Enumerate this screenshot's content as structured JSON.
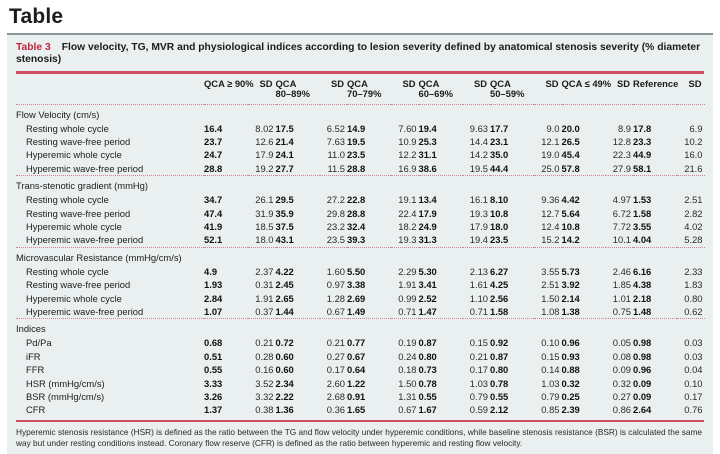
{
  "page": {
    "title": "Table"
  },
  "colors": {
    "card_background": "#e9f0ef",
    "accent_red": "#c2233c",
    "rule_red": "#cf4d5d",
    "dotted_separator_red": "#d4838d"
  },
  "table": {
    "label": "Table 3",
    "caption": "Flow velocity, TG, MVR and physiological indices according to lesion severity defined by anatomical stenosis severity (% diameter stenosis)",
    "columns": [
      "QCA ≥ 90%",
      "SD",
      "QCA\n80–89%",
      "SD",
      "QCA\n70–79%",
      "SD",
      "QCA\n60–69%",
      "SD",
      "QCA\n50–59%",
      "SD",
      "QCA ≤ 49%",
      "SD",
      "Reference",
      "SD"
    ],
    "sections": [
      {
        "header": "Flow Velocity (cm/s)",
        "rows": [
          {
            "label": "Resting whole cycle",
            "values": [
              "16.4",
              "8.02",
              "17.5",
              "6.52",
              "14.9",
              "7.60",
              "19.4",
              "9.63",
              "17.7",
              "9.0",
              "20.0",
              "8.9",
              "17.8",
              "6.9"
            ]
          },
          {
            "label": "Resting wave-free period",
            "values": [
              "23.7",
              "12.6",
              "21.4",
              "7.63",
              "19.5",
              "10.9",
              "25.3",
              "14.4",
              "23.1",
              "12.1",
              "26.5",
              "12.8",
              "23.3",
              "10.2"
            ]
          },
          {
            "label": "Hyperemic whole cycle",
            "values": [
              "24.7",
              "17.9",
              "24.1",
              "11.0",
              "23.5",
              "12.2",
              "31.1",
              "14.2",
              "35.0",
              "19.0",
              "45.4",
              "22.3",
              "44.9",
              "16.0"
            ]
          },
          {
            "label": "Hyperemic wave-free period",
            "values": [
              "28.8",
              "19.2",
              "27.7",
              "11.5",
              "28.8",
              "16.9",
              "38.6",
              "19.5",
              "44.4",
              "25.0",
              "57.8",
              "27.9",
              "58.1",
              "21.6"
            ]
          }
        ]
      },
      {
        "header": "Trans-stenotic gradient (mmHg)",
        "rows": [
          {
            "label": "Resting whole cycle",
            "values": [
              "34.7",
              "26.1",
              "29.5",
              "27.2",
              "22.8",
              "19.1",
              "13.4",
              "16.1",
              "8.10",
              "9.36",
              "4.42",
              "4.97",
              "1.53",
              "2.51"
            ]
          },
          {
            "label": "Resting wave-free period",
            "values": [
              "47.4",
              "31.9",
              "35.9",
              "29.8",
              "28.8",
              "22.4",
              "17.9",
              "19.3",
              "10.8",
              "12.7",
              "5.64",
              "6.72",
              "1.58",
              "2.82"
            ]
          },
          {
            "label": "Hyperemic whole cycle",
            "values": [
              "41.9",
              "18.5",
              "37.5",
              "23.2",
              "32.4",
              "18.2",
              "24.9",
              "17.9",
              "18.0",
              "12.4",
              "10.8",
              "7.72",
              "3.55",
              "4.02"
            ]
          },
          {
            "label": "Hyperemic wave-free period",
            "values": [
              "52.1",
              "18.0",
              "43.1",
              "23.5",
              "39.3",
              "19.3",
              "31.3",
              "19.4",
              "23.5",
              "15.2",
              "14.2",
              "10.1",
              "4.04",
              "5.28"
            ]
          }
        ]
      },
      {
        "header": "Microvascular Resistance (mmHg/cm/s)",
        "rows": [
          {
            "label": "Resting whole cycle",
            "values": [
              "4.9",
              "2.37",
              "4.22",
              "1.60",
              "5.50",
              "2.29",
              "5.30",
              "2.13",
              "6.27",
              "3.55",
              "5.73",
              "2.46",
              "6.16",
              "2.33"
            ]
          },
          {
            "label": "Resting wave-free period",
            "values": [
              "1.93",
              "0.31",
              "2.45",
              "0.97",
              "3.38",
              "1.91",
              "3.41",
              "1.61",
              "4.25",
              "2.51",
              "3.92",
              "1.85",
              "4.38",
              "1.83"
            ]
          },
          {
            "label": "Hyperemic whole cycle",
            "values": [
              "2.84",
              "1.91",
              "2.65",
              "1.28",
              "2.69",
              "0.99",
              "2.52",
              "1.10",
              "2.56",
              "1.50",
              "2.14",
              "1.01",
              "2.18",
              "0.80"
            ]
          },
          {
            "label": "Hyperemic wave-free period",
            "values": [
              "1.07",
              "0.37",
              "1.44",
              "0.67",
              "1.49",
              "0.71",
              "1.47",
              "0.71",
              "1.58",
              "1.08",
              "1.38",
              "0.75",
              "1.48",
              "0.62"
            ]
          }
        ]
      },
      {
        "header": "Indices",
        "rows": [
          {
            "label": "Pd/Pa",
            "values": [
              "0.68",
              "0.21",
              "0.72",
              "0.21",
              "0.77",
              "0.19",
              "0.87",
              "0.15",
              "0.92",
              "0.10",
              "0.96",
              "0.05",
              "0.98",
              "0.03"
            ]
          },
          {
            "label": "iFR",
            "values": [
              "0.51",
              "0.28",
              "0.60",
              "0.27",
              "0.67",
              "0.24",
              "0.80",
              "0.21",
              "0.87",
              "0.15",
              "0.93",
              "0.08",
              "0.98",
              "0.03"
            ]
          },
          {
            "label": "FFR",
            "values": [
              "0.55",
              "0.16",
              "0.60",
              "0.17",
              "0.64",
              "0.18",
              "0.73",
              "0.17",
              "0.80",
              "0.14",
              "0.88",
              "0.09",
              "0.96",
              "0.04"
            ]
          },
          {
            "label": "HSR (mmHg/cm/s)",
            "values": [
              "3.33",
              "3.52",
              "2.34",
              "2.60",
              "1.22",
              "1.50",
              "0.78",
              "1.03",
              "0.78",
              "1.03",
              "0.32",
              "0.32",
              "0.09",
              "0.10"
            ]
          },
          {
            "label": "BSR (mmHg/cm/s)",
            "values": [
              "3.26",
              "3.32",
              "2.22",
              "2.68",
              "0.91",
              "1.31",
              "0.55",
              "0.79",
              "0.55",
              "0.79",
              "0.25",
              "0.27",
              "0.09",
              "0.17"
            ]
          },
          {
            "label": "CFR",
            "values": [
              "1.37",
              "0.38",
              "1.36",
              "0.36",
              "1.65",
              "0.67",
              "1.67",
              "0.59",
              "2.12",
              "0.85",
              "2.39",
              "0.86",
              "2.64",
              "0.76"
            ]
          }
        ]
      }
    ],
    "footnote": "Hyperemic stenosis resistance (HSR) is defined as the ratio between the TG and flow velocity under hyperemic conditions, while baseline stenosis resistance (BSR) is calculated the same way but under resting conditions instead. Coronary flow reserve (CFR) is defined as the ratio between hyperemic and resting flow velocity."
  }
}
